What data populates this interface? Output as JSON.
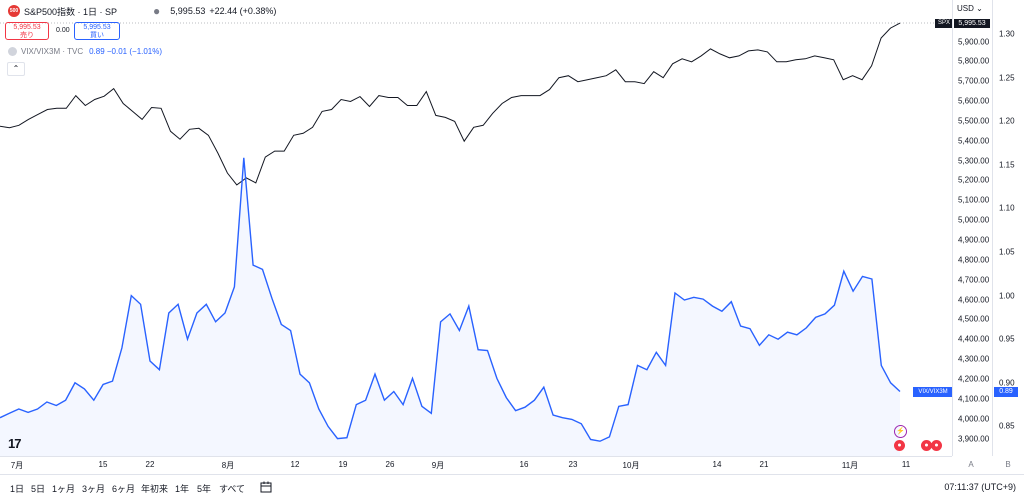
{
  "header": {
    "logo_text": "500",
    "title": "S&P500指数 · 1日 · SP",
    "dot": "●",
    "price": "5,995.53",
    "change": "+22.44 (+0.38%)"
  },
  "trade": {
    "sell_price": "5,995.53",
    "sell_label": "売り",
    "spread": "0.00",
    "buy_price": "5,995.53",
    "buy_label": "買い"
  },
  "vix_legend": {
    "name": "VIX/VIX3M · TVC",
    "values": "0.89  −0.01 (−1.01%)"
  },
  "collapse_icon": "⌃",
  "tv_logo": "17",
  "currency": "USD ⌄",
  "price_tags": {
    "spx_label": "SPX",
    "spx_value": "5,995.53",
    "vix_label": "VIX/VIX3M",
    "vix_value": "0.89"
  },
  "left_axis_ticks": [
    "5,900.00",
    "5,800.00",
    "5,700.00",
    "5,600.00",
    "5,500.00",
    "5,400.00",
    "5,300.00",
    "5,200.00",
    "5,100.00",
    "5,000.00",
    "4,900.00",
    "4,800.00",
    "4,700.00",
    "4,600.00",
    "4,500.00",
    "4,400.00",
    "4,300.00",
    "4,200.00",
    "4,100.00",
    "4,000.00",
    "3,900.00"
  ],
  "right_axis_ticks": [
    "1.30",
    "1.25",
    "1.20",
    "1.15",
    "1.10",
    "1.05",
    "1.00",
    "0.95",
    "0.90",
    "0.85"
  ],
  "time_ticks": [
    "7月",
    "15",
    "22",
    "8月",
    "12",
    "19",
    "26",
    "9月",
    "16",
    "23",
    "10月",
    "14",
    "21",
    "11月",
    "11"
  ],
  "corner_a": "A",
  "corner_b": "B",
  "ranges": [
    "1日",
    "5日",
    "1ヶ月",
    "3ヶ月",
    "6ヶ月",
    "年初来",
    "1年",
    "5年",
    "すべて"
  ],
  "clock": "07:11:37 (UTC+9)",
  "chart_data": [
    {
      "type": "line",
      "series": [
        {
          "name": "S&P500指数",
          "color": "#131722",
          "values": [
            5475,
            5468,
            5480,
            5510,
            5535,
            5560,
            5566,
            5566,
            5630,
            5580,
            5610,
            5627,
            5665,
            5590,
            5550,
            5510,
            5570,
            5566,
            5450,
            5410,
            5460,
            5465,
            5430,
            5340,
            5240,
            5180,
            5215,
            5190,
            5320,
            5350,
            5350,
            5430,
            5440,
            5470,
            5550,
            5560,
            5610,
            5600,
            5625,
            5575,
            5630,
            5620,
            5620,
            5580,
            5580,
            5650,
            5530,
            5520,
            5500,
            5400,
            5470,
            5480,
            5540,
            5590,
            5620,
            5630,
            5630,
            5630,
            5660,
            5720,
            5730,
            5700,
            5710,
            5720,
            5730,
            5760,
            5700,
            5700,
            5690,
            5750,
            5720,
            5790,
            5815,
            5800,
            5830,
            5865,
            5840,
            5820,
            5830,
            5855,
            5860,
            5850,
            5800,
            5800,
            5810,
            5815,
            5830,
            5820,
            5810,
            5710,
            5730,
            5710,
            5780,
            5920,
            5970,
            5995
          ]
        }
      ],
      "ylim": [
        3850,
        5950
      ]
    },
    {
      "type": "area",
      "series": [
        {
          "name": "VIX/VIX3M",
          "color": "#2962ff",
          "values": [
            0.86,
            0.865,
            0.87,
            0.866,
            0.87,
            0.878,
            0.874,
            0.88,
            0.9,
            0.893,
            0.88,
            0.898,
            0.902,
            0.94,
            1.0,
            0.99,
            0.925,
            0.915,
            0.98,
            0.99,
            0.95,
            0.98,
            0.99,
            0.97,
            0.98,
            1.01,
            1.158,
            1.035,
            1.03,
            0.997,
            0.967,
            0.96,
            0.91,
            0.9,
            0.87,
            0.85,
            0.836,
            0.837,
            0.875,
            0.88,
            0.91,
            0.88,
            0.89,
            0.875,
            0.905,
            0.873,
            0.865,
            0.97,
            0.979,
            0.96,
            0.988,
            0.938,
            0.937,
            0.905,
            0.883,
            0.868,
            0.872,
            0.88,
            0.895,
            0.863,
            0.86,
            0.858,
            0.853,
            0.835,
            0.833,
            0.838,
            0.873,
            0.875,
            0.92,
            0.915,
            0.935,
            0.92,
            1.003,
            0.995,
            0.998,
            0.996,
            0.988,
            0.982,
            0.993,
            0.965,
            0.962,
            0.943,
            0.955,
            0.95,
            0.958,
            0.955,
            0.963,
            0.975,
            0.979,
            0.989,
            1.028,
            1.005,
            1.022,
            1.019,
            0.92,
            0.9,
            0.89
          ]
        }
      ],
      "ylim": [
        0.8,
        1.33
      ]
    }
  ]
}
